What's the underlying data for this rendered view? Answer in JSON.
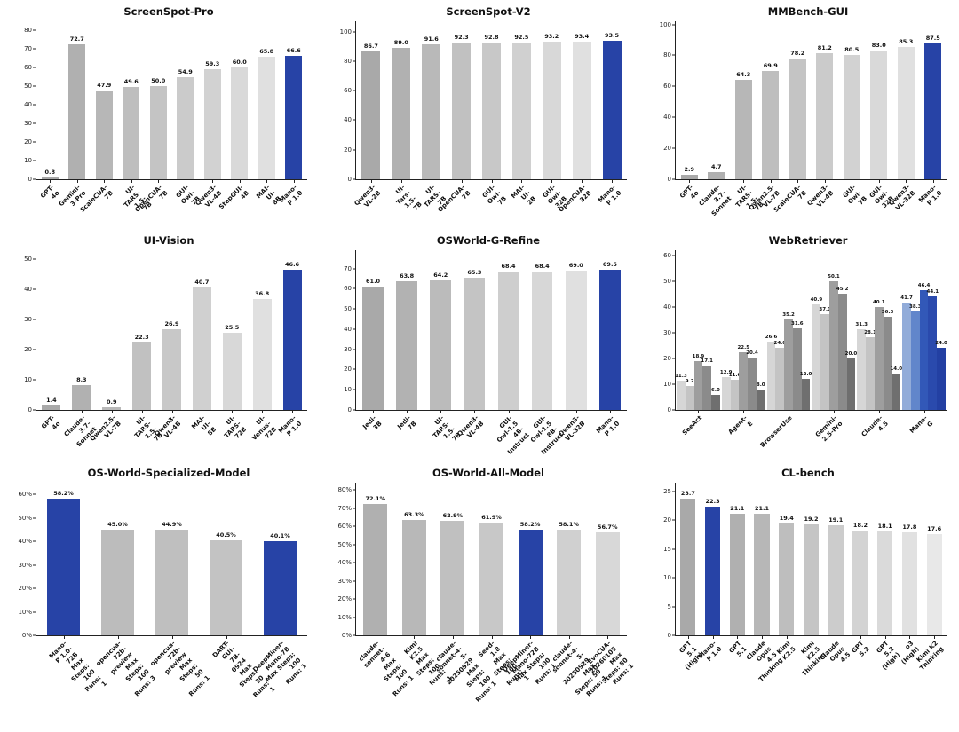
{
  "page": {
    "background": "#ffffff"
  },
  "palette": {
    "highlight_blue": "#2743a6",
    "axis_color": "#222222"
  },
  "chart_data": [
    {
      "type": "bar",
      "title": "ScreenSpot-Pro",
      "ytop": 85,
      "yticks": [
        {
          "v": 0,
          "t": "0"
        },
        {
          "v": 10,
          "t": "10"
        },
        {
          "v": 20,
          "t": "20"
        },
        {
          "v": 30,
          "t": "30"
        },
        {
          "v": 40,
          "t": "40"
        },
        {
          "v": 50,
          "t": "50"
        },
        {
          "v": 60,
          "t": "60"
        },
        {
          "v": 70,
          "t": "70"
        },
        {
          "v": 80,
          "t": "80"
        }
      ],
      "categories": [
        "GPT-4o",
        "Gemini-3-Pro",
        "ScaleCUA-7B",
        "UI-TARS-1.5-7B",
        "OpenCUA-7B",
        "GUI-Owl-7B",
        "Qwen3-VL-4B",
        "StepGUI-4B",
        "MAI-UI-8B",
        "Mano-P 1.0"
      ],
      "values": [
        0.8,
        72.7,
        47.9,
        49.6,
        50.0,
        54.9,
        59.3,
        60.0,
        65.8,
        66.6
      ],
      "labels": [
        "0.8",
        "72.7",
        "47.9",
        "49.6",
        "50.0",
        "54.9",
        "59.3",
        "60.0",
        "65.8",
        "66.6"
      ],
      "colors": [
        "#a9a9a9",
        "#b0b0b0",
        "#b7b7b7",
        "#bebebe",
        "#c4c4c4",
        "#cbcbcb",
        "#d2d2d2",
        "#d9d9d9",
        "#e0e0e0",
        "#2743a6"
      ],
      "highlight_index": 9
    },
    {
      "type": "bar",
      "title": "ScreenSpot-V2",
      "ytop": 107,
      "yticks": [
        {
          "v": 0,
          "t": "0"
        },
        {
          "v": 20,
          "t": "20"
        },
        {
          "v": 40,
          "t": "40"
        },
        {
          "v": 60,
          "t": "60"
        },
        {
          "v": 80,
          "t": "80"
        },
        {
          "v": 100,
          "t": "100"
        }
      ],
      "categories": [
        "Qwen3-VL-2B",
        "UI-Tars-1.5-7B",
        "UI-TARS-7B",
        "OpenCUA-7B",
        "GUI-Owl-7B",
        "MAI-UI-2B",
        "GUI-Owl-32B",
        "OpenCUA-32B",
        "Mano-P 1.0"
      ],
      "values": [
        86.7,
        89.0,
        91.6,
        92.3,
        92.8,
        92.5,
        93.2,
        93.4,
        93.5
      ],
      "labels": [
        "86.7",
        "89.0",
        "91.6",
        "92.3",
        "92.8",
        "92.5",
        "93.2",
        "93.4",
        "93.5"
      ],
      "colors": [
        "#a9a9a9",
        "#b1b1b1",
        "#b9b9b9",
        "#c1c1c1",
        "#c8c8c8",
        "#d0d0d0",
        "#d8d8d8",
        "#e0e0e0",
        "#2743a6"
      ],
      "highlight_index": 8
    },
    {
      "type": "bar",
      "title": "MMBench-GUI",
      "ytop": 102,
      "yticks": [
        {
          "v": 0,
          "t": "0"
        },
        {
          "v": 20,
          "t": "20"
        },
        {
          "v": 40,
          "t": "40"
        },
        {
          "v": 60,
          "t": "60"
        },
        {
          "v": 80,
          "t": "80"
        },
        {
          "v": 100,
          "t": "100"
        }
      ],
      "categories": [
        "GPT-4o",
        "Claude-3.7-Sonnet",
        "UI-TARS-1.5-7B",
        "Qwen2.5-VL-7B",
        "ScaleCUA-7B",
        "Qwen3-VL-4B",
        "GUI-Owl-7B",
        "GUI-Owl-32B",
        "Qwen3-VL-32B",
        "Mano-P 1.0"
      ],
      "values": [
        2.9,
        4.7,
        64.3,
        69.9,
        78.2,
        81.2,
        80.5,
        83.0,
        85.3,
        87.5
      ],
      "labels": [
        "2.9",
        "4.7",
        "64.3",
        "69.9",
        "78.2",
        "81.2",
        "80.5",
        "83.0",
        "85.3",
        "87.5"
      ],
      "colors": [
        "#a9a9a9",
        "#b0b0b0",
        "#b7b7b7",
        "#bebebe",
        "#c4c4c4",
        "#cbcbcb",
        "#d2d2d2",
        "#d9d9d9",
        "#e0e0e0",
        "#2743a6"
      ],
      "highlight_index": 9
    },
    {
      "type": "bar",
      "title": "UI-Vision",
      "ytop": 53,
      "yticks": [
        {
          "v": 0,
          "t": "0"
        },
        {
          "v": 10,
          "t": "10"
        },
        {
          "v": 20,
          "t": "20"
        },
        {
          "v": 30,
          "t": "30"
        },
        {
          "v": 40,
          "t": "40"
        },
        {
          "v": 50,
          "t": "50"
        }
      ],
      "categories": [
        "GPT-4o",
        "Claude-3.7-Sonnet",
        "Qwen2.5-VL-7B",
        "UI-TARS-1.5-7B",
        "Qwen3-VL-4B",
        "MAI-UI-8B",
        "UI-TARS-72B",
        "UI-Venus-72B",
        "Mano-P 1.0"
      ],
      "values": [
        1.4,
        8.3,
        0.9,
        22.3,
        26.9,
        40.7,
        25.5,
        36.8,
        46.6
      ],
      "labels": [
        "1.4",
        "8.3",
        "0.9",
        "22.3",
        "26.9",
        "40.7",
        "25.5",
        "36.8",
        "46.6"
      ],
      "colors": [
        "#a9a9a9",
        "#b1b1b1",
        "#b9b9b9",
        "#c1c1c1",
        "#c8c8c8",
        "#d0d0d0",
        "#d8d8d8",
        "#e0e0e0",
        "#2743a6"
      ],
      "highlight_index": 8
    },
    {
      "type": "bar",
      "title": "OSWorld-G-Refine",
      "ytop": 79,
      "yticks": [
        {
          "v": 0,
          "t": "0"
        },
        {
          "v": 10,
          "t": "10"
        },
        {
          "v": 20,
          "t": "20"
        },
        {
          "v": 30,
          "t": "30"
        },
        {
          "v": 40,
          "t": "40"
        },
        {
          "v": 50,
          "t": "50"
        },
        {
          "v": 60,
          "t": "60"
        },
        {
          "v": 70,
          "t": "70"
        }
      ],
      "categories": [
        "Jedi-3B",
        "Jedi-7B",
        "UI-TARS-1.5-7B",
        "Qwen3-VL-4B",
        "GUI-Owl-1.5\n4B-Instruct",
        "GUI-Owl-1.5\n8B-Instruct",
        "Qwen3-VL-32B",
        "Mano-P 1.0"
      ],
      "values": [
        61.0,
        63.8,
        64.2,
        65.3,
        68.4,
        68.4,
        69.0,
        69.5
      ],
      "labels": [
        "61.0",
        "63.8",
        "64.2",
        "65.3",
        "68.4",
        "68.4",
        "69.0",
        "69.5"
      ],
      "colors": [
        "#a9a9a9",
        "#b2b2b2",
        "#bbbbbb",
        "#c4c4c4",
        "#cecece",
        "#d7d7d7",
        "#e0e0e0",
        "#2743a6"
      ],
      "highlight_index": 7
    },
    {
      "type": "bar",
      "title": "WebRetriever",
      "ytop": 62,
      "yticks": [
        {
          "v": 0,
          "t": "0"
        },
        {
          "v": 10,
          "t": "10"
        },
        {
          "v": 20,
          "t": "20"
        },
        {
          "v": 30,
          "t": "30"
        },
        {
          "v": 40,
          "t": "40"
        },
        {
          "v": 50,
          "t": "50"
        },
        {
          "v": 60,
          "t": "60"
        }
      ],
      "categories": [
        "SeeAct",
        "Agent-E",
        "BrowserUse",
        "Gemini-2.5-Pro",
        "Claude-4.5",
        "Mano-G"
      ],
      "values": [
        [
          11.3,
          9.2,
          18.9,
          17.1,
          6.0
        ],
        [
          12.9,
          11.6,
          22.5,
          20.4,
          8.0
        ],
        [
          26.6,
          24.0,
          35.2,
          31.6,
          12.0
        ],
        [
          40.9,
          37.1,
          50.1,
          45.2,
          20.0
        ],
        [
          31.3,
          28.1,
          40.1,
          36.3,
          14.0
        ],
        [
          41.7,
          38.3,
          46.4,
          44.1,
          24.0
        ]
      ],
      "labels": [
        [
          "11.3",
          "9.2",
          "18.9",
          "17.1",
          "6.0"
        ],
        [
          "12.9",
          "11.6",
          "22.5",
          "20.4",
          "8.0"
        ],
        [
          "26.6",
          "24.0",
          "35.2",
          "31.6",
          "12.0"
        ],
        [
          "40.9",
          "37.1",
          "50.1",
          "45.2",
          "20.0"
        ],
        [
          "31.3",
          "28.1",
          "40.1",
          "36.3",
          "14.0"
        ],
        [
          "41.7",
          "38.3",
          "46.4",
          "44.1",
          "24.0"
        ]
      ],
      "colors": [
        [
          "#d6d6d6",
          "#c4c4c4",
          "#9e9e9e",
          "#8b8b8b",
          "#6f6f6f"
        ],
        [
          "#d6d6d6",
          "#c4c4c4",
          "#9e9e9e",
          "#8b8b8b",
          "#6f6f6f"
        ],
        [
          "#d6d6d6",
          "#c4c4c4",
          "#9e9e9e",
          "#8b8b8b",
          "#6f6f6f"
        ],
        [
          "#d6d6d6",
          "#c4c4c4",
          "#9e9e9e",
          "#8b8b8b",
          "#6f6f6f"
        ],
        [
          "#d6d6d6",
          "#c4c4c4",
          "#9e9e9e",
          "#8b8b8b",
          "#6f6f6f"
        ],
        [
          "#92acd9",
          "#6186cb",
          "#3258b8",
          "#2a4aad",
          "#2340a3"
        ]
      ],
      "highlight_group": "Mano-G"
    },
    {
      "type": "bar",
      "title": "OS-World-Specialized-Model",
      "ytop": 65,
      "yticks": [
        {
          "v": 0,
          "t": "0%"
        },
        {
          "v": 10,
          "t": "10%"
        },
        {
          "v": 20,
          "t": "20%"
        },
        {
          "v": 30,
          "t": "30%"
        },
        {
          "v": 40,
          "t": "40%"
        },
        {
          "v": 50,
          "t": "50%"
        },
        {
          "v": 60,
          "t": "60%"
        }
      ],
      "categories": [
        "Mano-P 1.0-72B\nMax Steps: 100\nRuns: 1",
        "opencua-72b-preview\nMax Steps: 100\nRuns: 3",
        "opencua-72b-preview\nMax Steps: 50\nRuns: 1",
        "DART-GUI-7B-0924\nMax Steps: 30\nRuns: 1",
        "DeepMiner-Mano-7B\nMax Steps: 100\nRuns: 1"
      ],
      "values": [
        58.2,
        45.0,
        44.9,
        40.5,
        40.1
      ],
      "labels": [
        "58.2%",
        "45.0%",
        "44.9%",
        "40.5%",
        "40.1%"
      ],
      "colors": [
        "#2743a6",
        "#bcbcbc",
        "#bfbfbf",
        "#c3c3c3",
        "#2743a6"
      ],
      "highlight_index": 0
    },
    {
      "type": "bar",
      "title": "OS-World-All-Model",
      "ytop": 84,
      "yticks": [
        {
          "v": 0,
          "t": "0%"
        },
        {
          "v": 10,
          "t": "10%"
        },
        {
          "v": 20,
          "t": "20%"
        },
        {
          "v": 30,
          "t": "30%"
        },
        {
          "v": 40,
          "t": "40%"
        },
        {
          "v": 50,
          "t": "50%"
        },
        {
          "v": 60,
          "t": "60%"
        },
        {
          "v": 70,
          "t": "70%"
        },
        {
          "v": 80,
          "t": "80%"
        }
      ],
      "categories": [
        "claude-sonnet-4-6\nMax Steps: 100\nRuns: 1",
        "Kimi K2.5\nMax Steps: 100\nRuns: 1",
        "claude-sonnet-4-5-20250929\nMax Steps: 100\nRuns: 1",
        "Seed-1.8\nMax Steps: 100\nRuns: 1",
        "DeepMiner-Mano-72B\nMax Steps: 100\nRuns: 1",
        "claude-sonnet-4-5-20250929\nMax Steps: 50\nRuns: 1",
        "EvoCUA-20260105\nMax Steps: 50\nRuns: 1"
      ],
      "values": [
        72.1,
        63.3,
        62.9,
        61.9,
        58.2,
        58.1,
        56.7
      ],
      "labels": [
        "72.1%",
        "63.3%",
        "62.9%",
        "61.9%",
        "58.2%",
        "58.1%",
        "56.7%"
      ],
      "colors": [
        "#b0b0b0",
        "#b8b8b8",
        "#c0c0c0",
        "#c8c8c8",
        "#2743a6",
        "#d0d0d0",
        "#d8d8d8"
      ],
      "highlight_index": 4
    },
    {
      "type": "bar",
      "title": "CL-bench",
      "ytop": 26.5,
      "yticks": [
        {
          "v": 0,
          "t": "0"
        },
        {
          "v": 5,
          "t": "5"
        },
        {
          "v": 10,
          "t": "10"
        },
        {
          "v": 15,
          "t": "15"
        },
        {
          "v": 20,
          "t": "20"
        },
        {
          "v": 25,
          "t": "25"
        }
      ],
      "categories": [
        "GPT 5.1 (High)",
        "Mano-P 1.0",
        "GPT 5.1",
        "Claude Opus 4.5 Thinking",
        "Kimi K2.5",
        "Kimi K2.5 Thinking",
        "Claude Opus 4.5",
        "GPT 5.2",
        "GPT 5.2 (High)",
        "o3 (High)",
        "Kimi K2 Thinking"
      ],
      "values": [
        23.7,
        22.3,
        21.1,
        21.1,
        19.4,
        19.2,
        19.1,
        18.2,
        18.1,
        17.8,
        17.6
      ],
      "labels": [
        "23.7",
        "22.3",
        "21.1",
        "21.1",
        "19.4",
        "19.2",
        "19.1",
        "18.2",
        "18.1",
        "17.8",
        "17.6"
      ],
      "colors": [
        "#a9a9a9",
        "#2743a6",
        "#b0b0b0",
        "#b7b7b7",
        "#bebebe",
        "#c5c5c5",
        "#cccccc",
        "#d3d3d3",
        "#dadada",
        "#e1e1e1",
        "#e8e8e8"
      ],
      "highlight_index": 1
    }
  ]
}
